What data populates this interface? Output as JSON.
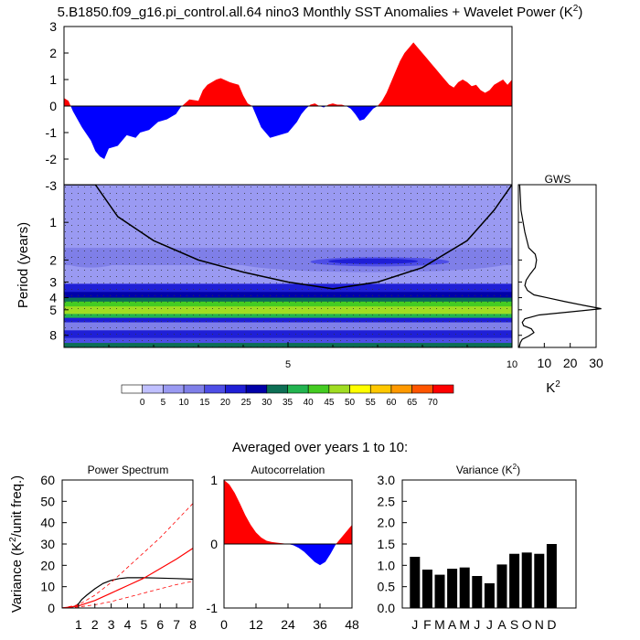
{
  "title": {
    "prefix": "5.B1850.f09_g16.pi_control.all.64 nino3 Monthly SST Anomalies + Wavelet Power (K",
    "sup": "2",
    "suffix": ")"
  },
  "colors": {
    "positive": "#ff0000",
    "negative": "#0000ff",
    "bar": "#000000",
    "cone": "#000000",
    "acf_pos": "#ff0000",
    "acf_neg": "#0000ff"
  },
  "chart_data": [
    {
      "id": "sst_anomaly",
      "type": "area",
      "title": "",
      "ylim": [
        -3,
        3
      ],
      "y_ticks": [
        "3",
        "2",
        "1",
        "0",
        "-1",
        "-2",
        "-3"
      ],
      "x_range_years": [
        0,
        10
      ],
      "fill_positive_above_zero": true,
      "x": [
        0.0,
        0.1,
        0.2,
        0.4,
        0.6,
        0.7,
        0.8,
        0.9,
        1.0,
        1.2,
        1.4,
        1.6,
        1.7,
        1.9,
        2.1,
        2.3,
        2.5,
        2.6,
        2.7,
        2.8,
        3.0,
        3.1,
        3.2,
        3.3,
        3.4,
        3.5,
        3.7,
        3.9,
        4.0,
        4.1,
        4.2,
        4.3,
        4.4,
        4.5,
        4.6,
        4.8,
        5.0,
        5.1,
        5.2,
        5.3,
        5.4,
        5.5,
        5.6,
        5.7,
        5.8,
        5.9,
        6.0,
        6.1,
        6.2,
        6.3,
        6.4,
        6.5,
        6.6,
        6.7,
        6.8,
        6.9,
        7.0,
        7.1,
        7.2,
        7.3,
        7.4,
        7.5,
        7.6,
        7.7,
        7.8,
        7.9,
        8.0,
        8.1,
        8.2,
        8.3,
        8.4,
        8.5,
        8.6,
        8.7,
        8.8,
        8.9,
        9.0,
        9.1,
        9.2,
        9.3,
        9.4,
        9.5,
        9.6,
        9.7,
        9.8,
        9.9,
        10.0
      ],
      "y": [
        0.3,
        0.2,
        -0.2,
        -0.8,
        -1.3,
        -1.7,
        -1.9,
        -2.0,
        -1.6,
        -1.5,
        -1.1,
        -1.2,
        -1.0,
        -0.9,
        -0.6,
        -0.5,
        -0.3,
        -0.05,
        0.1,
        0.25,
        0.2,
        0.6,
        0.8,
        0.9,
        1.0,
        1.05,
        0.9,
        0.8,
        0.4,
        0.1,
        0.0,
        -0.4,
        -0.8,
        -1.0,
        -1.2,
        -1.1,
        -1.0,
        -0.8,
        -0.6,
        -0.3,
        -0.1,
        0.05,
        0.1,
        0.0,
        -0.05,
        0.05,
        0.1,
        0.05,
        0.05,
        0.0,
        -0.1,
        -0.3,
        -0.55,
        -0.5,
        -0.3,
        -0.1,
        0.0,
        0.2,
        0.5,
        0.9,
        1.3,
        1.7,
        2.0,
        2.2,
        2.4,
        2.2,
        2.0,
        1.8,
        1.6,
        1.4,
        1.2,
        1.0,
        0.8,
        0.7,
        0.9,
        1.0,
        0.9,
        0.75,
        0.8,
        0.6,
        0.5,
        0.6,
        0.8,
        0.9,
        1.0,
        0.8,
        1.0
      ]
    },
    {
      "id": "wavelet_power",
      "type": "heatmap",
      "ylabel": "Period (years)",
      "y_ticks": [
        "1",
        "2",
        "3",
        "4",
        "5",
        "8"
      ],
      "x_ticks": [
        "5",
        "10"
      ],
      "x_tick_values": [
        5,
        10
      ],
      "x_range_years": [
        0,
        10
      ],
      "period_range_years": [
        0.5,
        10
      ],
      "bands": [
        {
          "from": 0.5,
          "to": 1.6,
          "power": 5
        },
        {
          "from": 1.6,
          "to": 2.2,
          "power": 10
        },
        {
          "from": 2.2,
          "to": 3.1,
          "power": 5
        },
        {
          "from": 3.1,
          "to": 3.6,
          "power": 20
        },
        {
          "from": 3.6,
          "to": 4.0,
          "power": 25
        },
        {
          "from": 4.0,
          "to": 4.3,
          "power": 30
        },
        {
          "from": 4.3,
          "to": 4.7,
          "power": 40
        },
        {
          "from": 4.7,
          "to": 5.4,
          "power": 45
        },
        {
          "from": 5.4,
          "to": 5.8,
          "power": 35
        },
        {
          "from": 5.8,
          "to": 6.3,
          "power": 20
        },
        {
          "from": 6.3,
          "to": 7.3,
          "power": 10
        },
        {
          "from": 7.3,
          "to": 8.4,
          "power": 20
        },
        {
          "from": 8.4,
          "to": 9.2,
          "power": 15
        },
        {
          "from": 9.2,
          "to": 10.0,
          "power": 30
        }
      ],
      "cone_of_influence": {
        "x": [
          0.0,
          0.7,
          1.2,
          2.0,
          3.0,
          4.0,
          5.0,
          6.0,
          7.0,
          8.0,
          9.0,
          9.6,
          10.0
        ],
        "period": [
          0.5,
          0.5,
          0.9,
          1.4,
          2.0,
          2.5,
          3.0,
          3.4,
          3.0,
          2.3,
          1.4,
          0.8,
          0.5
        ]
      },
      "features": [
        {
          "x0": 0.0,
          "x1": 1.2,
          "p0": 1.8,
          "p1": 2.3,
          "power": 10
        },
        {
          "x0": 3.8,
          "x1": 10.0,
          "p0": 1.7,
          "p1": 2.5,
          "power": 10
        },
        {
          "x0": 5.5,
          "x1": 8.6,
          "p0": 1.9,
          "p1": 2.25,
          "power": 15
        },
        {
          "x0": 5.9,
          "x1": 7.9,
          "p0": 1.95,
          "p1": 2.15,
          "power": 20
        }
      ]
    },
    {
      "id": "global_wavelet_spectrum",
      "type": "line",
      "title": "GWS",
      "xlabel": "K",
      "xlabel_sup": "2",
      "x_ticks": [
        "10",
        "20",
        "30"
      ],
      "x_tick_values": [
        10,
        20,
        30
      ],
      "xlim": [
        0,
        30
      ],
      "period": [
        0.5,
        0.8,
        1.2,
        1.6,
        1.8,
        2.0,
        2.3,
        2.6,
        2.9,
        3.2,
        3.5,
        3.8,
        4.0,
        4.3,
        4.6,
        4.9,
        5.2,
        5.5,
        5.9,
        6.3,
        6.7,
        7.1,
        7.6,
        8.1,
        8.6,
        9.1,
        9.6,
        10.0
      ],
      "power": [
        0.5,
        1.0,
        2.5,
        4.0,
        6.5,
        7.0,
        6.5,
        4.5,
        3.0,
        2.5,
        3.5,
        6.0,
        11.0,
        18.0,
        25.0,
        32.0,
        20.0,
        8.0,
        2.5,
        1.5,
        2.0,
        5.0,
        6.0,
        4.0,
        1.5,
        0.8,
        0.5,
        0.3
      ]
    },
    {
      "id": "colorbar",
      "type": "legend",
      "levels": [
        "0",
        "5",
        "10",
        "15",
        "20",
        "25",
        "30",
        "35",
        "40",
        "45",
        "50",
        "55",
        "60",
        "65",
        "70"
      ],
      "colors": [
        "#ffffff",
        "#c0c0ff",
        "#9a9af2",
        "#7f7fe8",
        "#4e4ee6",
        "#1f1fd6",
        "#0000a8",
        "#0d6f55",
        "#22b450",
        "#44cc22",
        "#a0dd22",
        "#ffff00",
        "#ffc800",
        "#ff9900",
        "#ff5500",
        "#ff0000"
      ]
    },
    {
      "id": "averaged_caption",
      "type": "text",
      "text": "Averaged over years 1 to 10:"
    },
    {
      "id": "power_spectrum",
      "type": "line",
      "title": "Power Spectrum",
      "ylabel_prefix": "Variance (K",
      "ylabel_sup": "2",
      "ylabel_suffix": "/unit freq.)",
      "ylim": [
        0,
        60
      ],
      "xlim": [
        0,
        8
      ],
      "y_ticks": [
        "60",
        "50",
        "40",
        "30",
        "20",
        "10",
        "0"
      ],
      "y_tick_values": [
        60,
        50,
        40,
        30,
        20,
        10,
        0
      ],
      "x_ticks": [
        "1",
        "2",
        "3",
        "4",
        "5",
        "6",
        "7",
        "8"
      ],
      "x_tick_values": [
        1,
        2,
        3,
        4,
        5,
        6,
        7,
        8
      ],
      "series": [
        {
          "name": "spectrum",
          "style": "black",
          "x": [
            0.0,
            0.4,
            0.8,
            1.0,
            1.2,
            1.5,
            2.0,
            2.5,
            3.0,
            3.5,
            4.0,
            5.0,
            6.0,
            7.0,
            8.0
          ],
          "y": [
            0.0,
            0.2,
            0.8,
            2.0,
            4.0,
            6.0,
            9.0,
            11.5,
            13.0,
            13.8,
            14.2,
            14.2,
            14.0,
            13.8,
            13.5
          ]
        },
        {
          "name": "red noise",
          "style": "red-solid",
          "x": [
            0.0,
            1.0,
            2.0,
            3.0,
            4.0,
            5.0,
            6.0,
            7.0,
            8.0
          ],
          "y": [
            0.0,
            1.0,
            3.5,
            7.0,
            10.5,
            14.0,
            18.5,
            23.0,
            28.0
          ]
        },
        {
          "name": "upper confidence",
          "style": "red-dashed",
          "x": [
            0.0,
            1.0,
            2.0,
            3.0,
            4.0,
            5.0,
            6.0,
            7.0,
            8.0
          ],
          "y": [
            0.0,
            1.5,
            6.0,
            12.0,
            19.0,
            26.0,
            33.0,
            41.0,
            49.0
          ]
        },
        {
          "name": "lower confidence",
          "style": "red-dashed",
          "x": [
            0.0,
            1.0,
            2.0,
            3.0,
            4.0,
            5.0,
            6.0,
            7.0,
            8.0
          ],
          "y": [
            0.0,
            0.5,
            1.5,
            3.0,
            5.0,
            7.0,
            9.0,
            11.0,
            12.5
          ]
        }
      ]
    },
    {
      "id": "autocorrelation",
      "type": "area",
      "title": "Autocorrelation",
      "ylim": [
        -1,
        1
      ],
      "xlim": [
        0,
        48
      ],
      "y_ticks": [
        "1",
        "0",
        "-1"
      ],
      "y_tick_values": [
        1,
        0,
        -1
      ],
      "x_ticks": [
        "0",
        "12",
        "24",
        "36",
        "48"
      ],
      "x_tick_values": [
        0,
        12,
        24,
        36,
        48
      ],
      "x": [
        0,
        2,
        4,
        6,
        8,
        10,
        12,
        14,
        16,
        18,
        20,
        22,
        24,
        26,
        28,
        30,
        32,
        34,
        36,
        38,
        40,
        42,
        44,
        46,
        48
      ],
      "y": [
        1.0,
        0.93,
        0.8,
        0.63,
        0.45,
        0.3,
        0.18,
        0.1,
        0.05,
        0.03,
        0.02,
        0.01,
        0.0,
        -0.02,
        -0.06,
        -0.12,
        -0.2,
        -0.28,
        -0.33,
        -0.28,
        -0.15,
        0.0,
        0.1,
        0.2,
        0.3
      ]
    },
    {
      "id": "monthly_variance",
      "type": "bar",
      "title_prefix": "Variance (K",
      "title_sup": "2",
      "title_suffix": ")",
      "categories": [
        "J",
        "F",
        "M",
        "A",
        "M",
        "J",
        "J",
        "A",
        "S",
        "O",
        "N",
        "D"
      ],
      "values": [
        1.2,
        0.9,
        0.78,
        0.92,
        0.95,
        0.75,
        0.58,
        1.02,
        1.27,
        1.3,
        1.27,
        1.5
      ],
      "ylim": [
        0,
        3
      ],
      "y_ticks": [
        "3.0",
        "2.5",
        "2.0",
        "1.5",
        "1.0",
        "0.5",
        "0.0"
      ],
      "y_tick_values": [
        3.0,
        2.5,
        2.0,
        1.5,
        1.0,
        0.5,
        0.0
      ]
    }
  ]
}
